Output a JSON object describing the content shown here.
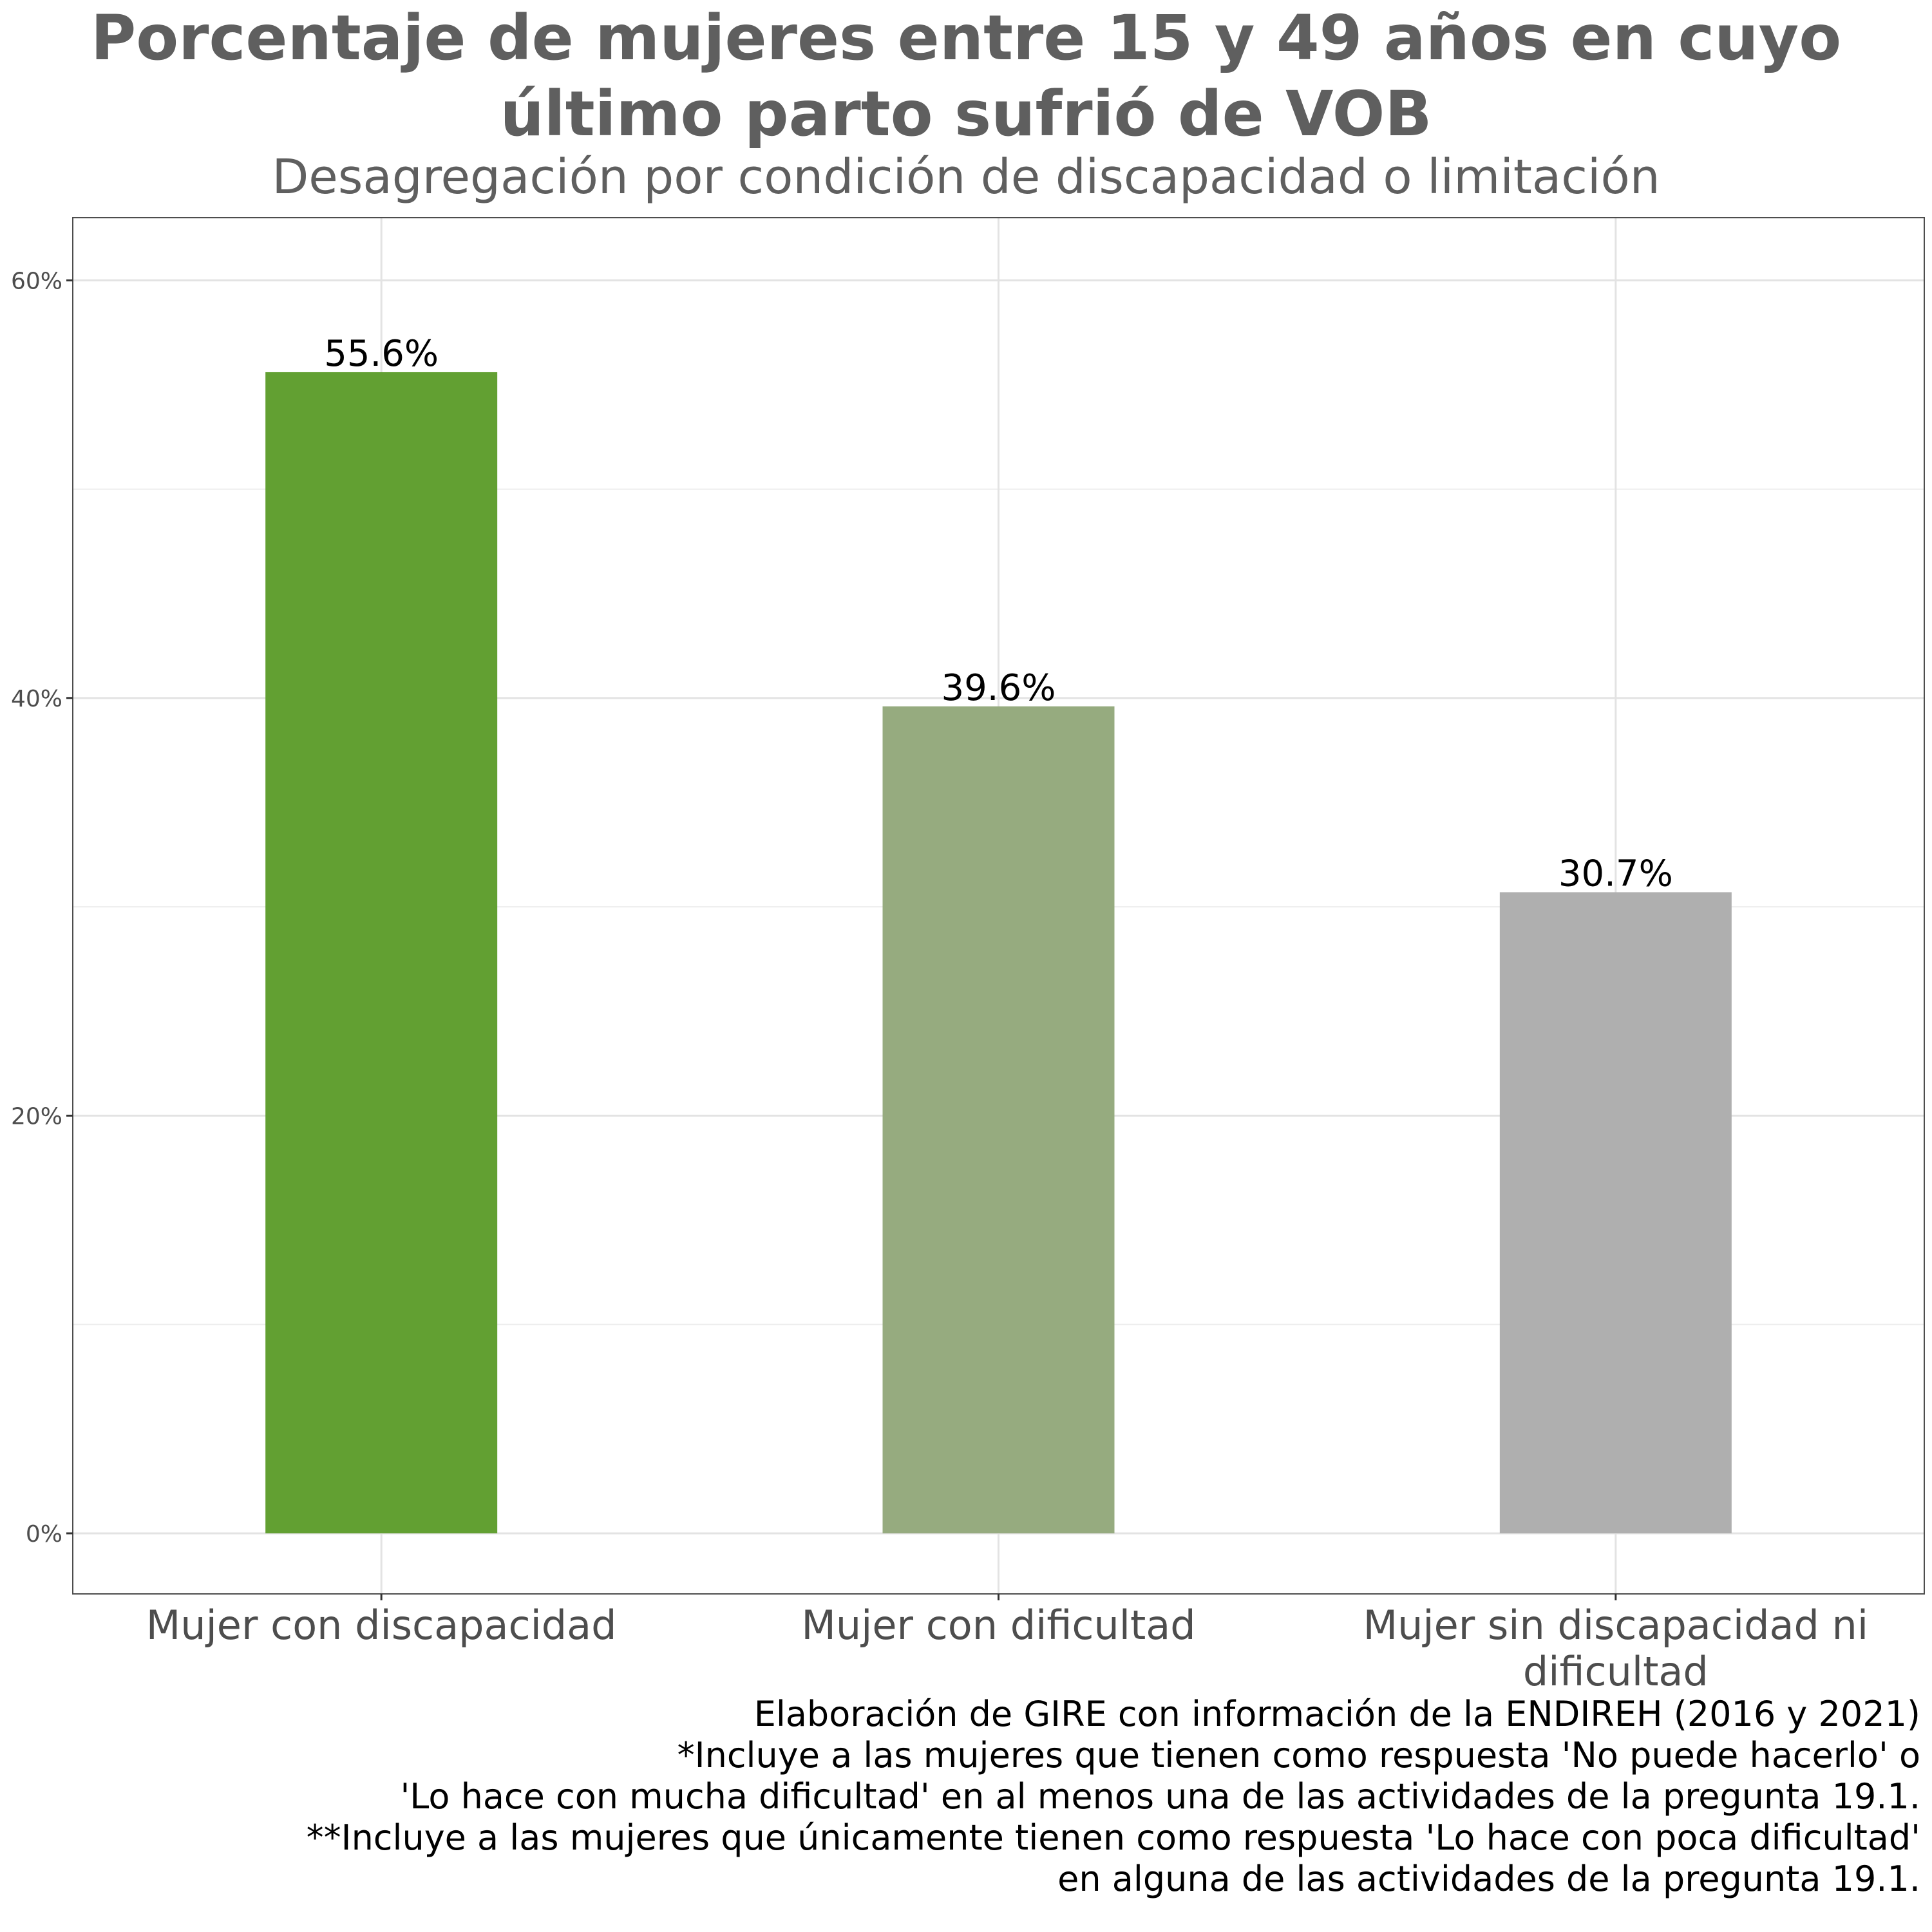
{
  "chart_data": {
    "type": "bar",
    "title": [
      "Porcentaje de mujeres entre 15 y 49 años en cuyo",
      "último parto sufrió de VOB"
    ],
    "subtitle": "Desagregación por condición de discapacidad o limitación",
    "categories": [
      [
        "Mujer con discapacidad"
      ],
      [
        "Mujer con dificultad"
      ],
      [
        "Mujer sin discapacidad ni",
        "dificultad"
      ]
    ],
    "values": [
      55.6,
      39.6,
      30.7
    ],
    "value_labels": [
      "55.6%",
      "39.6%",
      "30.7%"
    ],
    "colors": [
      "#62a032",
      "#96ab7f",
      "#afafaf"
    ],
    "xlabel": "",
    "ylabel": "",
    "ylim": [
      -2.9,
      63
    ],
    "yticks": [
      0,
      20,
      40,
      60
    ],
    "ytick_labels": [
      "0%",
      "20%",
      "40%",
      "60%"
    ],
    "minor_gridlines": [
      10,
      30,
      50
    ],
    "grid": true,
    "legend": "none",
    "caption": [
      "Elaboración de GIRE con información de la ENDIREH (2016 y 2021)",
      "*Incluye a las mujeres que tienen como respuesta 'No puede hacerlo' o",
      "'Lo hace con mucha dificultad' en al menos una de las actividades de la pregunta 19.1.",
      "**Incluye a las mujeres que únicamente tienen como respuesta 'Lo hace con poca dificultad'",
      "en alguna de las actividades de la pregunta 19.1."
    ]
  }
}
